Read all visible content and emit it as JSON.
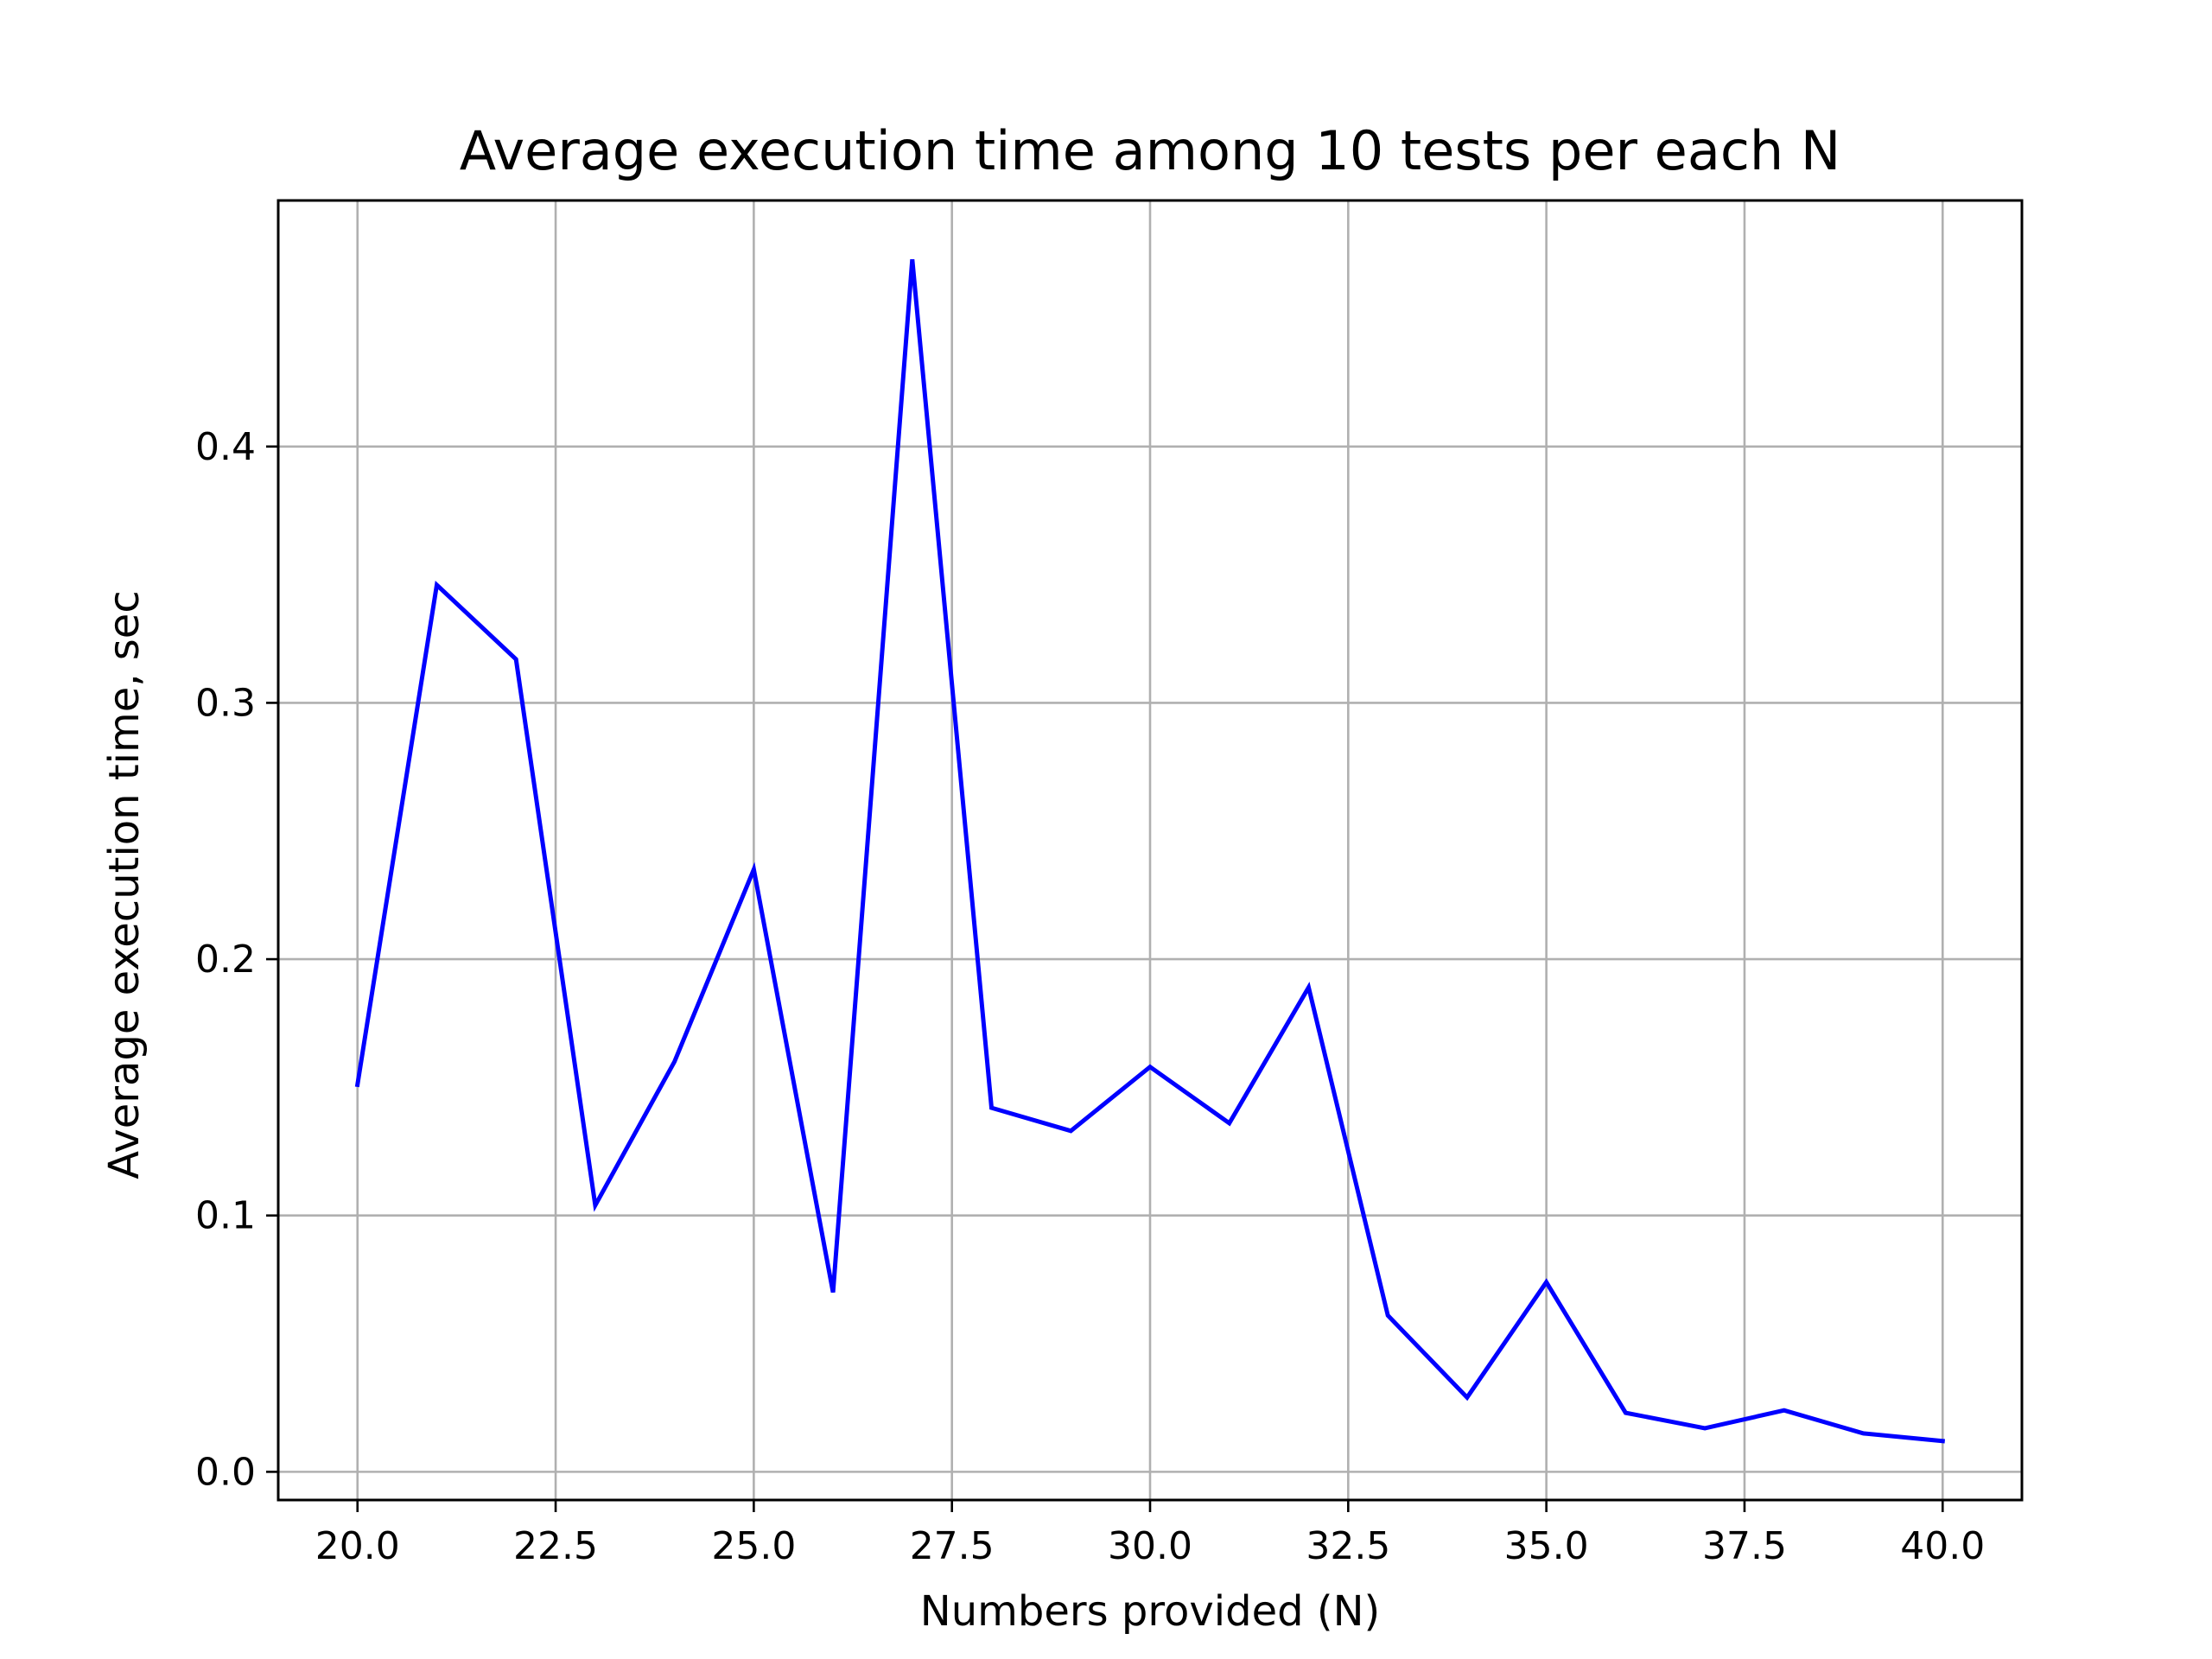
{
  "chart_data": {
    "type": "line",
    "title": "Average execution time among 10 tests per each N",
    "xlabel": "Numbers provided (N)",
    "ylabel": "Average execution time, sec",
    "xlim": [
      19.0,
      41.0
    ],
    "ylim": [
      -0.011,
      0.496
    ],
    "x_ticks": [
      20.0,
      22.5,
      25.0,
      27.5,
      30.0,
      32.5,
      35.0,
      37.5,
      40.0
    ],
    "x_tick_labels": [
      "20.0",
      "22.5",
      "25.0",
      "27.5",
      "30.0",
      "32.5",
      "35.0",
      "37.5",
      "40.0"
    ],
    "y_ticks": [
      0.0,
      0.1,
      0.2,
      0.3,
      0.4
    ],
    "y_tick_labels": [
      "0.0",
      "0.1",
      "0.2",
      "0.3",
      "0.4"
    ],
    "grid": true,
    "legend": null,
    "series": [
      {
        "color": "#0000ff",
        "x": [
          20,
          21,
          22,
          23,
          24,
          25,
          26,
          27,
          28,
          29,
          30,
          31,
          32,
          33,
          34,
          35,
          36,
          37,
          38,
          39,
          40
        ],
        "y": [
          0.151,
          0.346,
          0.317,
          0.104,
          0.16,
          0.235,
          0.07,
          0.473,
          0.142,
          0.133,
          0.158,
          0.136,
          0.189,
          0.061,
          0.029,
          0.074,
          0.023,
          0.017,
          0.024,
          0.015,
          0.012
        ]
      }
    ],
    "colors": {
      "line": "#0000ff",
      "grid": "#b0b0b0",
      "axes": "#000000"
    }
  }
}
